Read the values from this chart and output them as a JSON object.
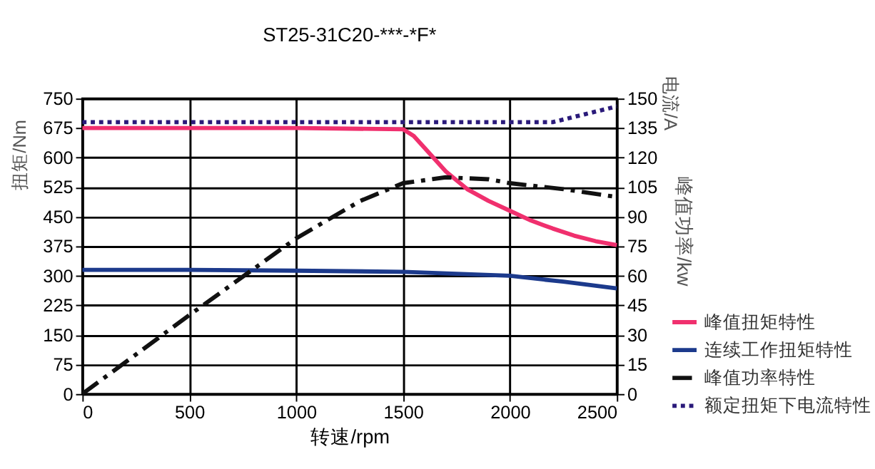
{
  "chart_data": {
    "type": "line",
    "title": "ST25-31C20-***-*F*",
    "xlabel": "转速/rpm",
    "ylabel": "扭矩/Nm",
    "y2label": "峰值功率/kw",
    "annotations": [
      "电流/A"
    ],
    "xlim": [
      0,
      2500
    ],
    "xticks": [
      0,
      500,
      1000,
      1500,
      2000,
      2500
    ],
    "ylim": [
      0,
      750
    ],
    "yticks": [
      0,
      75,
      150,
      225,
      300,
      375,
      450,
      525,
      600,
      675,
      750
    ],
    "y2lim": [
      0,
      150
    ],
    "y2ticks": [
      0,
      15,
      30,
      45,
      60,
      75,
      90,
      105,
      120,
      135,
      150
    ],
    "grid": true,
    "legend": "bottom right",
    "series": [
      {
        "name": "峰值扭矩特性",
        "color": "#f0306e",
        "line_style": "solid",
        "x": [
          0,
          500,
          1000,
          1500,
          1550,
          1600,
          1700,
          1800,
          1900,
          2000,
          2100,
          2200,
          2300,
          2400,
          2500
        ],
        "values": [
          675,
          675,
          675,
          672,
          655,
          625,
          565,
          520,
          490,
          465,
          440,
          420,
          402,
          388,
          378
        ]
      },
      {
        "name": "连续工作扭矩特性",
        "color": "#1c3a8c",
        "line_style": "solid",
        "x": [
          0,
          500,
          1000,
          1500,
          2000,
          2250,
          2500
        ],
        "values": [
          315,
          315,
          313,
          310,
          300,
          285,
          268
        ]
      },
      {
        "name": "峰值功率特性",
        "color": "#111111",
        "line_style": "dashed",
        "axis": "y2",
        "x": [
          0,
          500,
          1000,
          1300,
          1500,
          1700,
          1900,
          2000,
          2250,
          2500
        ],
        "values": [
          0,
          40,
          79,
          98,
          107,
          110,
          109,
          107,
          104,
          100
        ]
      },
      {
        "name": "额定扭矩下电流特性",
        "color": "#2a1a7a",
        "line_style": "dotted",
        "axis": "y2",
        "x": [
          0,
          500,
          1000,
          1500,
          2000,
          2200,
          2350,
          2500
        ],
        "values": [
          138,
          138,
          138,
          138,
          138,
          138,
          142,
          146
        ]
      }
    ]
  }
}
